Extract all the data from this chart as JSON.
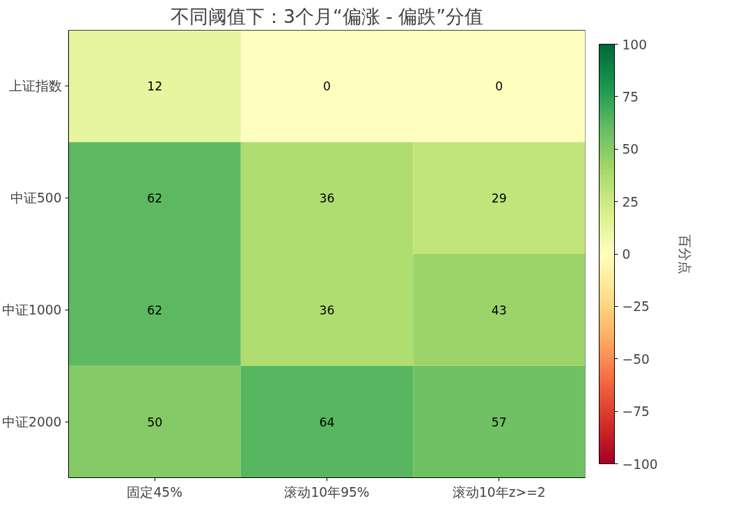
{
  "chart_data": {
    "type": "heatmap",
    "title": "不同阈值下：3个月“偏涨 - 偏跌”分值",
    "categories": [
      "固定45%",
      "滚动10年95%",
      "滚动10年z>=2"
    ],
    "y_categories": [
      "上证指数",
      "中证500",
      "中证1000",
      "中证2000"
    ],
    "cells": [
      [
        12,
        0,
        0
      ],
      [
        62,
        36,
        29
      ],
      [
        62,
        36,
        43
      ],
      [
        50,
        64,
        57
      ]
    ],
    "data_labels": true,
    "clim": [
      -100,
      100
    ],
    "cticks": [
      -100,
      -75,
      -50,
      -25,
      0,
      25,
      50,
      75,
      100
    ],
    "clabel": "百分点"
  }
}
